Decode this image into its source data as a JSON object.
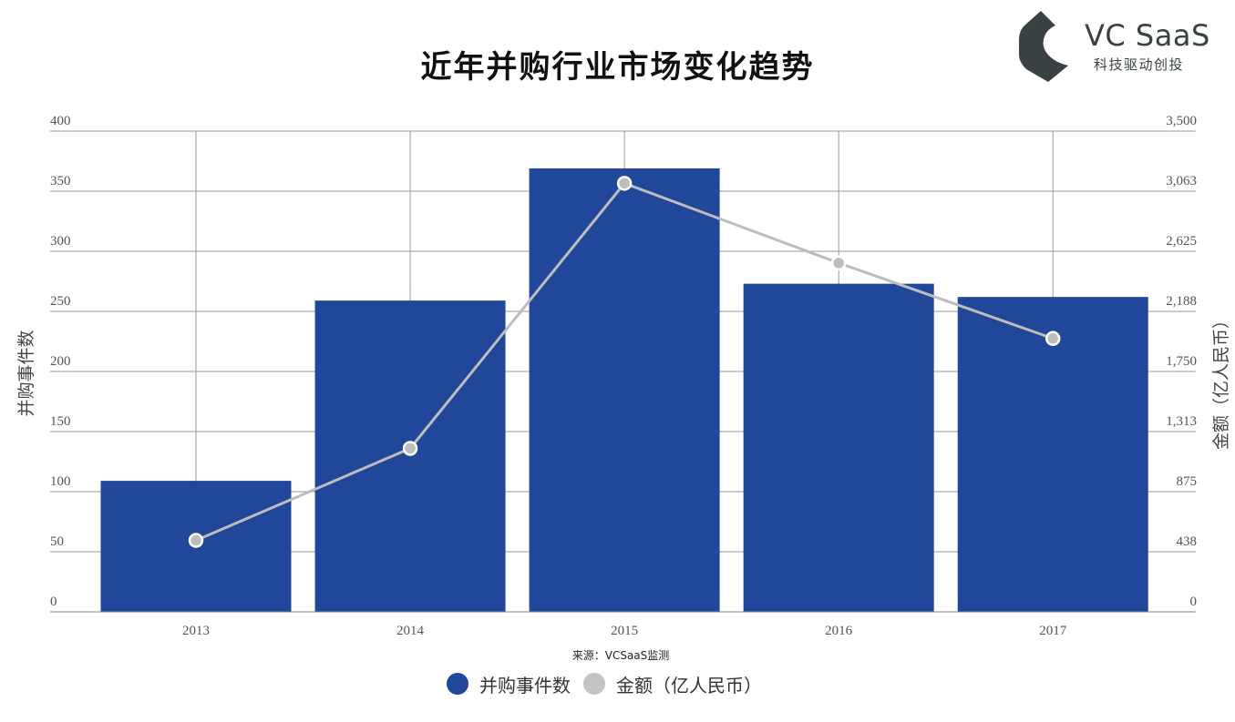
{
  "title": "近年并购行业市场变化趋势",
  "logo": {
    "name": "VC SaaS",
    "tagline": "科技驱动创投"
  },
  "source": "来源：VCSaaS监测",
  "colors": {
    "bar": "#21479b",
    "line": "#bdbdbd",
    "grid": "#999999",
    "axis_text": "#555555"
  },
  "legend": [
    {
      "label": "并购事件数",
      "color": "#21479b"
    },
    {
      "label": "金额（亿人民币）",
      "color": "#c4c4c4"
    }
  ],
  "chart_data": {
    "type": "bar",
    "categories": [
      "2013",
      "2014",
      "2015",
      "2016",
      "2017"
    ],
    "series": [
      {
        "name": "并购事件数",
        "type": "bar",
        "axis": "left",
        "values": [
          109,
          259,
          369,
          273,
          262
        ]
      },
      {
        "name": "金额（亿人民币）",
        "type": "line",
        "axis": "right",
        "values": [
          520,
          1190,
          3120,
          2540,
          1990
        ]
      }
    ],
    "ylabel": "并购事件数",
    "y2label": "金额（亿人民币）",
    "ylim": [
      0,
      400
    ],
    "y2lim": [
      0,
      3500
    ],
    "yticks": [
      "0",
      "50",
      "100",
      "150",
      "200",
      "250",
      "300",
      "350",
      "400"
    ],
    "y2ticks": [
      "0",
      "438",
      "875",
      "1,313",
      "1,750",
      "2,188",
      "2,625",
      "3,063",
      "3,500"
    ],
    "grid": true,
    "legend_position": "bottom"
  }
}
